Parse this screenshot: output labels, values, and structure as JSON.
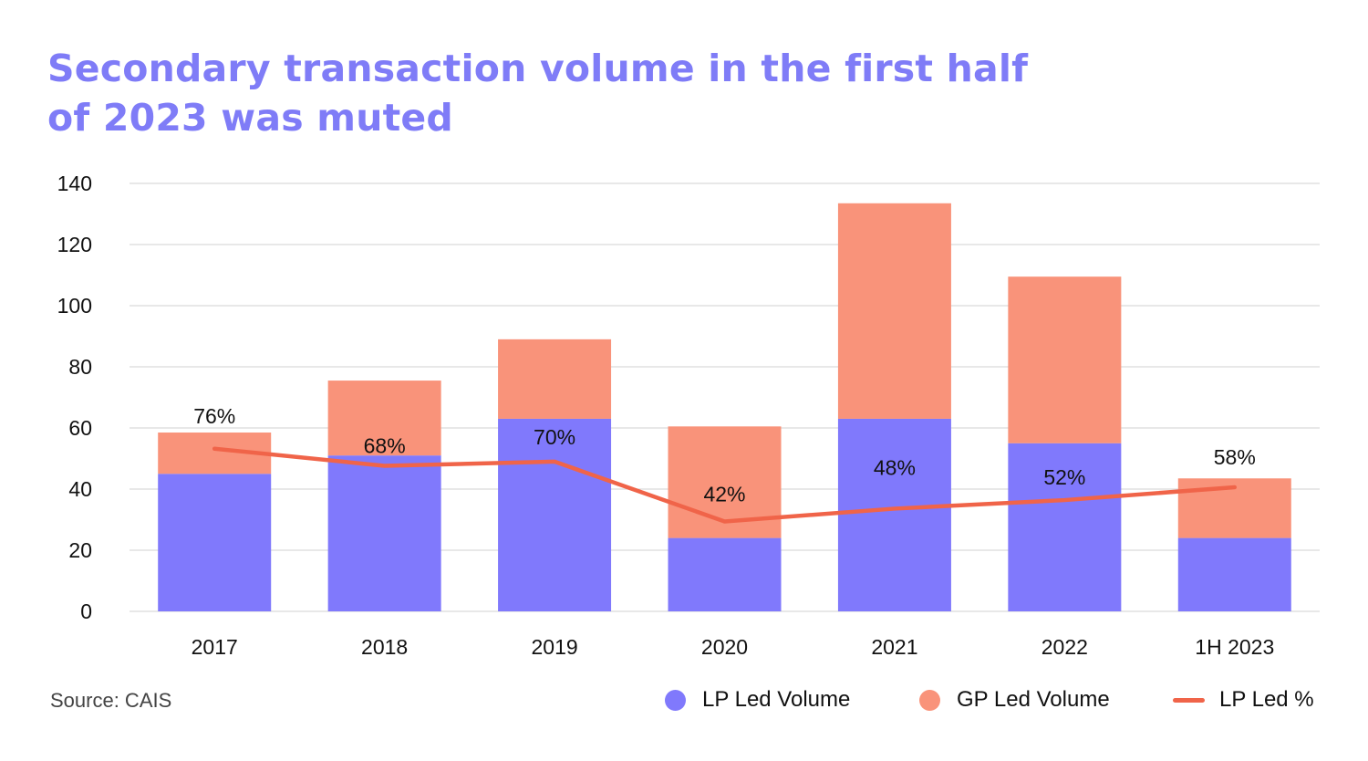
{
  "title": {
    "line1": "Secondary transaction volume in the first half",
    "line2": "of 2023 was muted"
  },
  "colors": {
    "title": "#7f7cf7",
    "lp_volume": "#8079fc",
    "gp_volume": "#f9937a",
    "lp_percent_line": "#f06449",
    "gridline": "#d9d9d9"
  },
  "source": "Source: CAIS",
  "legend": {
    "lp_volume": "LP Led Volume",
    "gp_volume": "GP Led Volume",
    "lp_percent": "LP Led %"
  },
  "chart_data": {
    "type": "bar",
    "stacked": true,
    "categories": [
      "2017",
      "2018",
      "2019",
      "2020",
      "2021",
      "2022",
      "1H 2023"
    ],
    "series": [
      {
        "name": "LP Led Volume",
        "type": "bar",
        "values": [
          45,
          51,
          63,
          24,
          63,
          55,
          24
        ]
      },
      {
        "name": "GP Led Volume",
        "type": "bar",
        "values": [
          13.5,
          24.5,
          26,
          36.5,
          70.5,
          54.5,
          19.5
        ]
      },
      {
        "name": "LP Led %",
        "type": "line",
        "values": [
          76,
          68,
          70,
          42,
          48,
          52,
          58
        ],
        "labels": [
          "76%",
          "68%",
          "70%",
          "42%",
          "48%",
          "52%",
          "58%"
        ]
      }
    ],
    "ylim": [
      0,
      140
    ],
    "yticks": [
      0,
      20,
      40,
      60,
      80,
      100,
      120,
      140
    ],
    "grid": true,
    "legend_position": "bottom-right"
  }
}
